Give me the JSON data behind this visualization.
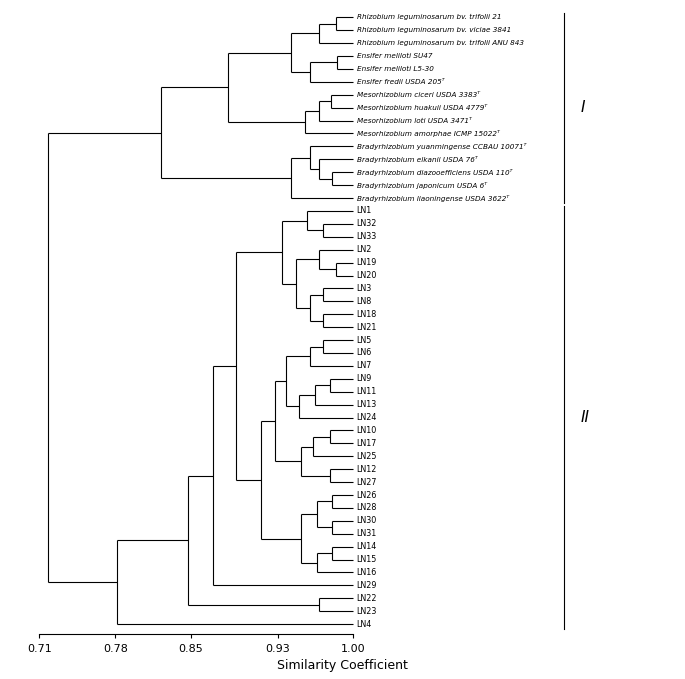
{
  "title": "",
  "xlabel": "Similarity Coefficient",
  "xlim_left": 0.68,
  "xlim_right": 1.3,
  "xticks": [
    0.71,
    0.78,
    0.85,
    0.93,
    1.0
  ],
  "xtick_labels": [
    "0.71",
    "0.78",
    "0.85",
    "0.93",
    "1.00"
  ],
  "figsize": [
    6.85,
    6.79
  ],
  "dpi": 100,
  "reference_taxa": [
    "Rhizobium leguminosarum bv. trifolii 21",
    "Rhizobium leguminosarum bv. viciae 3841",
    "Rhizobium leguminosarum bv. trifolii ANU 843",
    "Ensifer meliloti SU47",
    "Ensifer meliloti L5-30",
    "Ensifer fredii USDA 205ᵀ",
    "Mesorhizobium ciceri USDA 3383ᵀ",
    "Mesorhizobium huakuii USDA 4779ᵀ",
    "Mesorhizobium loti USDA 3471ᵀ",
    "Mesorhizobium amorphae ICMP 15022ᵀ",
    "Bradyrhizobium yuanmingense CCBAU 10071ᵀ",
    "Bradyrhizobium elkanii USDA 76ᵀ",
    "Bradyrhizobium diazooefficiens USDA 110ᵀ",
    "Bradyrhizobium japonicum USDA 6ᵀ",
    "Bradyrhizobium liaoningense USDA 3622ᵀ"
  ],
  "ln_taxa": [
    "LN1",
    "LN32",
    "LN33",
    "LN2",
    "LN19",
    "LN20",
    "LN3",
    "LN8",
    "LN18",
    "LN21",
    "LN5",
    "LN6",
    "LN7",
    "LN9",
    "LN11",
    "LN13",
    "LN24",
    "LN10",
    "LN17",
    "LN25",
    "LN12",
    "LN27",
    "LN26",
    "LN28",
    "LN30",
    "LN31",
    "LN14",
    "LN15",
    "LN16",
    "LN29",
    "LN22",
    "LN23",
    "LN4"
  ],
  "color": "#000000",
  "linewidth": 0.8
}
